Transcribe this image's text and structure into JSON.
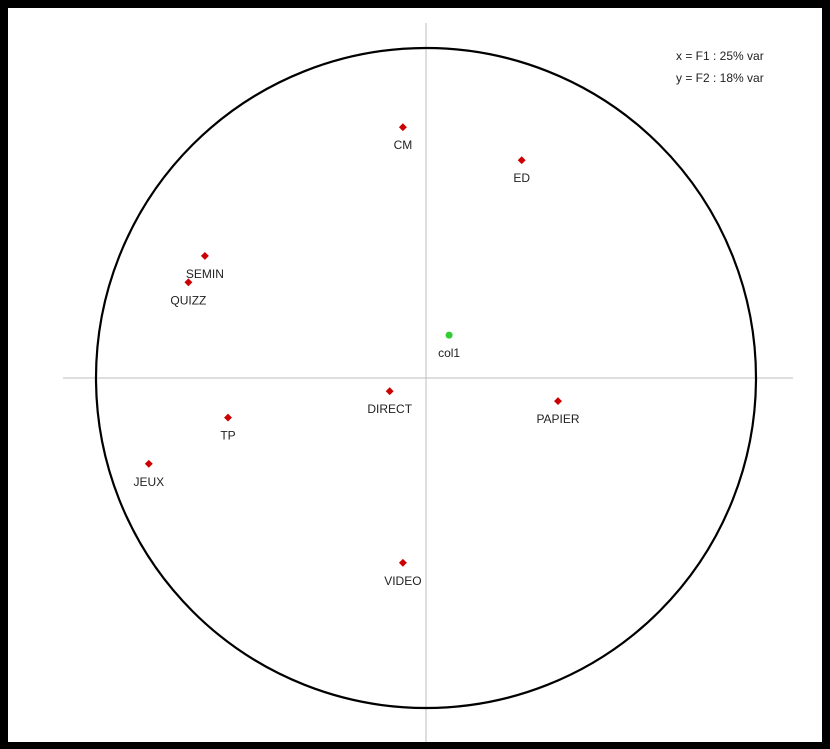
{
  "chart_data": {
    "type": "scatter",
    "title": "",
    "axis_info": {
      "x": "x = F1 : 25% var",
      "y": "y = F2 : 18% var"
    },
    "xlim": [
      -1,
      1
    ],
    "ylim": [
      -1,
      1
    ],
    "unit_circle": true,
    "colors": {
      "variable": "#cc0000",
      "supplementary": "#33cc33",
      "circle": "#000000",
      "axes": "#bdbdbd"
    },
    "points": [
      {
        "label": "CM",
        "x": -0.07,
        "y": 0.76,
        "group": "variable"
      },
      {
        "label": "ED",
        "x": 0.29,
        "y": 0.66,
        "group": "variable"
      },
      {
        "label": "SEMIN",
        "x": -0.67,
        "y": 0.37,
        "group": "variable"
      },
      {
        "label": "QUIZZ",
        "x": -0.72,
        "y": 0.29,
        "group": "variable"
      },
      {
        "label": "col1",
        "x": 0.07,
        "y": 0.13,
        "group": "supplementary"
      },
      {
        "label": "DIRECT",
        "x": -0.11,
        "y": -0.04,
        "group": "variable"
      },
      {
        "label": "PAPIER",
        "x": 0.4,
        "y": -0.07,
        "group": "variable"
      },
      {
        "label": "TP",
        "x": -0.6,
        "y": -0.12,
        "group": "variable"
      },
      {
        "label": "JEUX",
        "x": -0.84,
        "y": -0.26,
        "group": "variable"
      },
      {
        "label": "VIDEO",
        "x": -0.07,
        "y": -0.56,
        "group": "variable"
      }
    ]
  }
}
